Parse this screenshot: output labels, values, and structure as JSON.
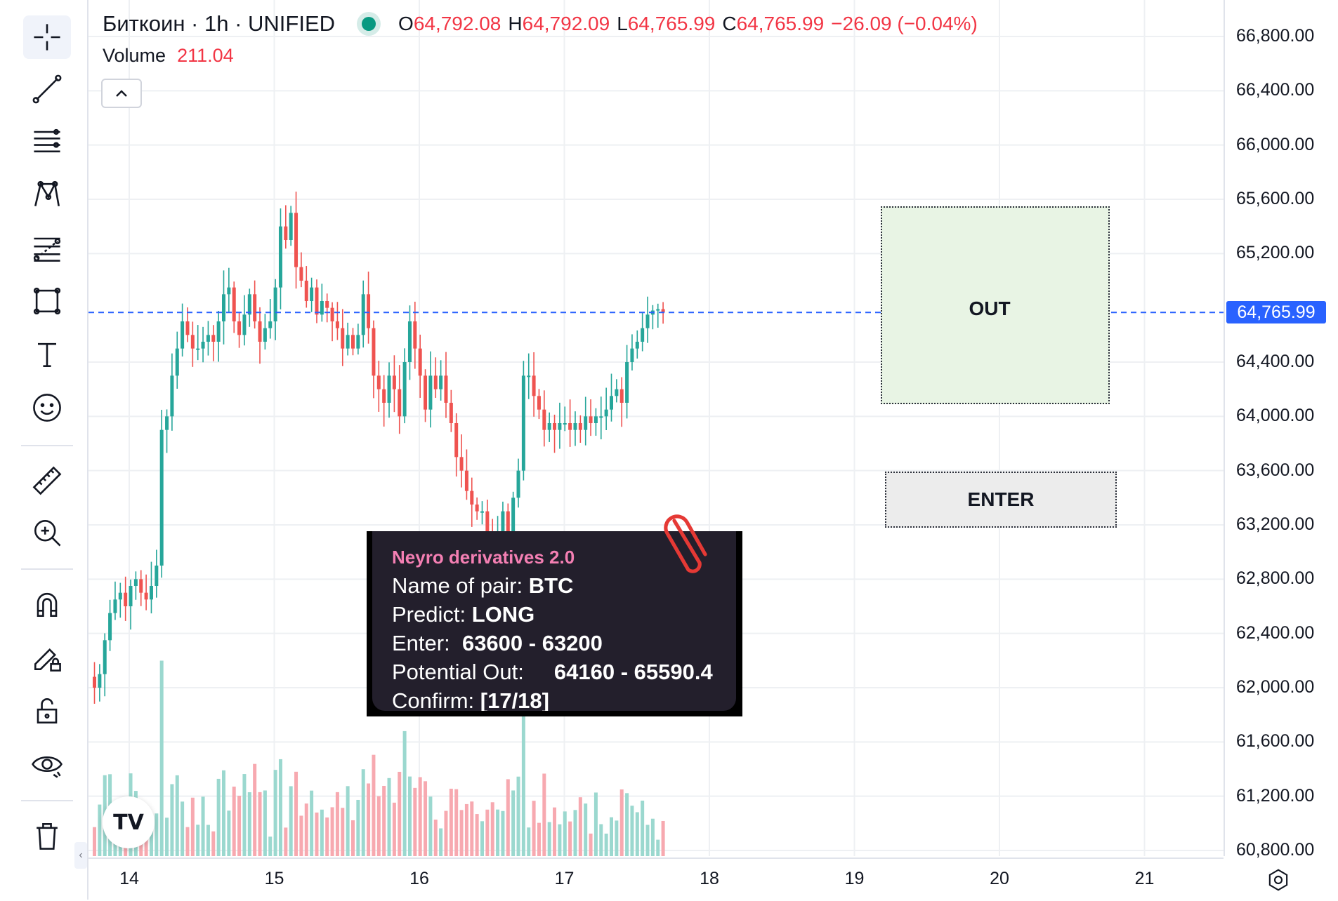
{
  "header": {
    "symbol": "Биткоин · 1h · UNIFIED",
    "open_key": "O",
    "open": "64,792.08",
    "high_key": "H",
    "high": "64,792.09",
    "low_key": "L",
    "low": "64,765.99",
    "close_key": "C",
    "close": "64,765.99",
    "change": "−26.09 (−0.04%)",
    "status_color": "#089981"
  },
  "volume": {
    "label": "Volume",
    "value": "211.04"
  },
  "price_axis": {
    "labels": [
      "66,800.00",
      "66,400.00",
      "66,000.00",
      "65,600.00",
      "65,200.00",
      "64,400.00",
      "64,000.00",
      "63,600.00",
      "63,200.00",
      "62,800.00",
      "62,400.00",
      "62,000.00",
      "61,600.00",
      "61,200.00",
      "60,800.00"
    ],
    "last_price": "64,765.99",
    "last_price_color": "#2962ff"
  },
  "time_axis": {
    "labels": [
      "14",
      "15",
      "16",
      "17",
      "18",
      "19",
      "20",
      "21"
    ]
  },
  "boxes": {
    "out_label": "OUT",
    "enter_label": "ENTER"
  },
  "signal": {
    "title": "Neyro derivatives 2.0",
    "pair_label": "Name of pair:",
    "pair_value": "BTC",
    "predict_label": "Predict:",
    "predict_value": "LONG",
    "enter_label": "Enter:",
    "enter_value": "63600 - 63200",
    "out_label": "Potential Out:",
    "out_value": "64160 - 65590.4",
    "confirm_label": "Confirm:",
    "confirm_value": "[17/18]"
  },
  "tools": [
    "crosshair-icon",
    "trend-line-icon",
    "horizontal-lines-icon",
    "pattern-icon",
    "fib-icon",
    "rectangle-icon",
    "text-icon",
    "emoji-icon",
    "ruler-icon",
    "zoom-in-icon",
    "magnet-icon",
    "pencil-lock-icon",
    "lock-icon",
    "eye-icon",
    "trash-icon"
  ],
  "logo": "TV",
  "colors": {
    "up": "#26a69a",
    "down": "#ef5350",
    "up_vol": "#9bd8cf",
    "down_vol": "#f7a9b0"
  },
  "chart_data": {
    "type": "candlestick",
    "x": [
      "14",
      "15",
      "16",
      "17",
      "18",
      "19",
      "20",
      "21"
    ],
    "ylim": [
      60800,
      66800
    ],
    "closes": [
      62000,
      62100,
      62350,
      62550,
      62650,
      62700,
      62600,
      62750,
      62800,
      62700,
      62650,
      62750,
      62900,
      63900,
      64000,
      64300,
      64500,
      64700,
      64600,
      64500,
      64500,
      64550,
      64600,
      64550,
      64700,
      64900,
      64950,
      64700,
      64600,
      64750,
      64900,
      64700,
      64550,
      64650,
      64700,
      64950,
      65400,
      65300,
      65500,
      65100,
      65000,
      64850,
      64950,
      64750,
      64850,
      64800,
      64700,
      64650,
      64500,
      64600,
      64500,
      64600,
      64900,
      64650,
      64300,
      64200,
      64100,
      64300,
      64200,
      64000,
      64400,
      64700,
      64500,
      64300,
      64050,
      64300,
      64200,
      64300,
      64100,
      63950,
      63700,
      63600,
      63450,
      63350,
      63300,
      63300,
      63100,
      63000,
      63100,
      63300,
      63150,
      63400,
      63600,
      64300,
      64300,
      64150,
      64050,
      63900,
      63950,
      63900,
      63950,
      63950,
      63900,
      63950,
      63900,
      64000,
      63950,
      64000,
      64000,
      64050,
      64150,
      64200,
      64100,
      64400,
      64500,
      64550,
      64650,
      64750,
      64780,
      64790,
      64765.99
    ],
    "volume_max": 1700
  }
}
